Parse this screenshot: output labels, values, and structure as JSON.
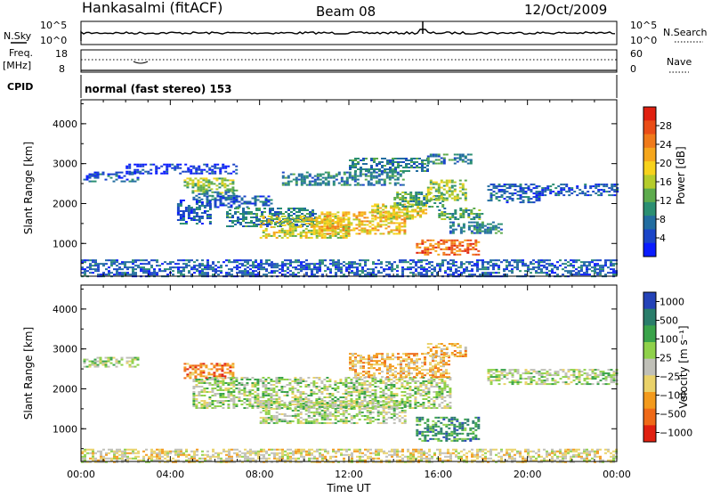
{
  "header": {
    "station": "Hankasalmi (fitACF)",
    "beam": "Beam 08",
    "date": "12/Oct/2009"
  },
  "top_panels": {
    "nsky_label": "N.Sky",
    "nsearch_label": "N.Search",
    "nsky_ticks": [
      "10^5",
      "10^0"
    ],
    "nsearch_ticks": [
      "10^5",
      "10^0"
    ],
    "freq_label_1": "Freq.",
    "freq_label_2": "[MHz]",
    "freq_ticks": [
      "18",
      "8"
    ],
    "nave_label": "Nave",
    "nave_ticks": [
      "60",
      "0"
    ],
    "cpid_label": "CPID",
    "cpid_text": "normal (fast stereo) 153"
  },
  "chart_data": [
    {
      "type": "heatmap",
      "name": "power",
      "ylabel": "Slant Range [km]",
      "xlabel": "Time UT",
      "x_ticks": [
        "00:00",
        "04:00",
        "08:00",
        "12:00",
        "16:00",
        "20:00",
        "00:00"
      ],
      "x_range_hours": [
        0,
        24
      ],
      "y_ticks": [
        "1000",
        "2000",
        "3000",
        "4000"
      ],
      "y_range_km": [
        180,
        4600
      ],
      "colorbar": {
        "label": "Power [dB]",
        "ticks": [
          "4",
          "8",
          "12",
          "16",
          "20",
          "24",
          "28"
        ],
        "range": [
          0,
          32
        ],
        "colors": [
          "#0a1cff",
          "#1b45c8",
          "#226da0",
          "#2b8f72",
          "#5dab4d",
          "#b5cc2b",
          "#f7d21c",
          "#f5a61c",
          "#f07a1a",
          "#ea4d17",
          "#e02010"
        ]
      },
      "regions": [
        {
          "t": [
            0.1,
            2.6
          ],
          "r": [
            2550,
            2800
          ],
          "p": 7
        },
        {
          "t": [
            2.0,
            7.0
          ],
          "r": [
            2750,
            3000
          ],
          "p": 5
        },
        {
          "t": [
            4.3,
            5.8
          ],
          "r": [
            1500,
            2100
          ],
          "p": 6
        },
        {
          "t": [
            4.6,
            6.8
          ],
          "r": [
            2250,
            2650
          ],
          "p": 15
        },
        {
          "t": [
            5.0,
            7.0
          ],
          "r": [
            2100,
            2350
          ],
          "p": 10
        },
        {
          "t": [
            5.6,
            8.5
          ],
          "r": [
            1900,
            2200
          ],
          "p": 6
        },
        {
          "t": [
            6.5,
            10.5
          ],
          "r": [
            1450,
            1900
          ],
          "p": 11
        },
        {
          "t": [
            8.0,
            12.0
          ],
          "r": [
            1150,
            1700
          ],
          "p": 20
        },
        {
          "t": [
            10.5,
            14.5
          ],
          "r": [
            1250,
            1800
          ],
          "p": 23
        },
        {
          "t": [
            13.0,
            15.5
          ],
          "r": [
            1600,
            2000
          ],
          "p": 20
        },
        {
          "t": [
            14.0,
            16.2
          ],
          "r": [
            1900,
            2300
          ],
          "p": 14
        },
        {
          "t": [
            15.5,
            17.2
          ],
          "r": [
            2100,
            2600
          ],
          "p": 16
        },
        {
          "t": [
            16.0,
            18.0
          ],
          "r": [
            1600,
            1900
          ],
          "p": 14
        },
        {
          "t": [
            16.5,
            18.8
          ],
          "r": [
            1250,
            1550
          ],
          "p": 11
        },
        {
          "t": [
            15.0,
            17.8
          ],
          "r": [
            700,
            1100
          ],
          "p": 27
        },
        {
          "t": [
            18.2,
            20.5
          ],
          "r": [
            2050,
            2500
          ],
          "p": 7
        },
        {
          "t": [
            20.5,
            24.0
          ],
          "r": [
            2200,
            2500
          ],
          "p": 6
        },
        {
          "t": [
            9.0,
            14.5
          ],
          "r": [
            2450,
            2800
          ],
          "p": 9
        },
        {
          "t": [
            12.0,
            15.5
          ],
          "r": [
            2800,
            3150
          ],
          "p": 11
        },
        {
          "t": [
            15.5,
            17.5
          ],
          "r": [
            3000,
            3250
          ],
          "p": 10
        },
        {
          "t": [
            0.0,
            24.0
          ],
          "r": [
            180,
            600
          ],
          "p": 6
        }
      ]
    },
    {
      "type": "heatmap",
      "name": "velocity",
      "ylabel": "Slant Range [km]",
      "xlabel": "Time UT",
      "x_ticks": [
        "00:00",
        "04:00",
        "08:00",
        "12:00",
        "16:00",
        "20:00",
        "00:00"
      ],
      "x_range_hours": [
        0,
        24
      ],
      "y_ticks": [
        "1000",
        "2000",
        "3000",
        "4000"
      ],
      "y_range_km": [
        180,
        4600
      ],
      "colorbar": {
        "label": "Velocity [m s⁻¹]",
        "ticks": [
          "1000",
          "500",
          "100",
          "25",
          "−25",
          "−100",
          "−500",
          "−1000"
        ],
        "colors": [
          "#2443b8",
          "#2a7d6a",
          "#3aa34a",
          "#8fd14a",
          "#c0c0b8",
          "#ead26a",
          "#f39a1c",
          "#ef6a18",
          "#e02010"
        ]
      },
      "regions": [
        {
          "t": [
            0.1,
            2.6
          ],
          "r": [
            2550,
            2800
          ],
          "v": 0
        },
        {
          "t": [
            4.6,
            6.8
          ],
          "r": [
            2250,
            2650
          ],
          "v": -300
        },
        {
          "t": [
            5.0,
            16.5
          ],
          "r": [
            1500,
            2300
          ],
          "v": 0
        },
        {
          "t": [
            8.0,
            14.5
          ],
          "r": [
            1150,
            1700
          ],
          "v": 0
        },
        {
          "t": [
            12.0,
            16.5
          ],
          "r": [
            2300,
            2900
          ],
          "v": -200
        },
        {
          "t": [
            15.5,
            17.2
          ],
          "r": [
            2800,
            3150
          ],
          "v": -250
        },
        {
          "t": [
            15.0,
            17.8
          ],
          "r": [
            700,
            1300
          ],
          "v": 150
        },
        {
          "t": [
            18.2,
            24.0
          ],
          "r": [
            2100,
            2500
          ],
          "v": 0
        },
        {
          "t": [
            0.0,
            24.0
          ],
          "r": [
            180,
            500
          ],
          "v": -60
        }
      ]
    }
  ]
}
